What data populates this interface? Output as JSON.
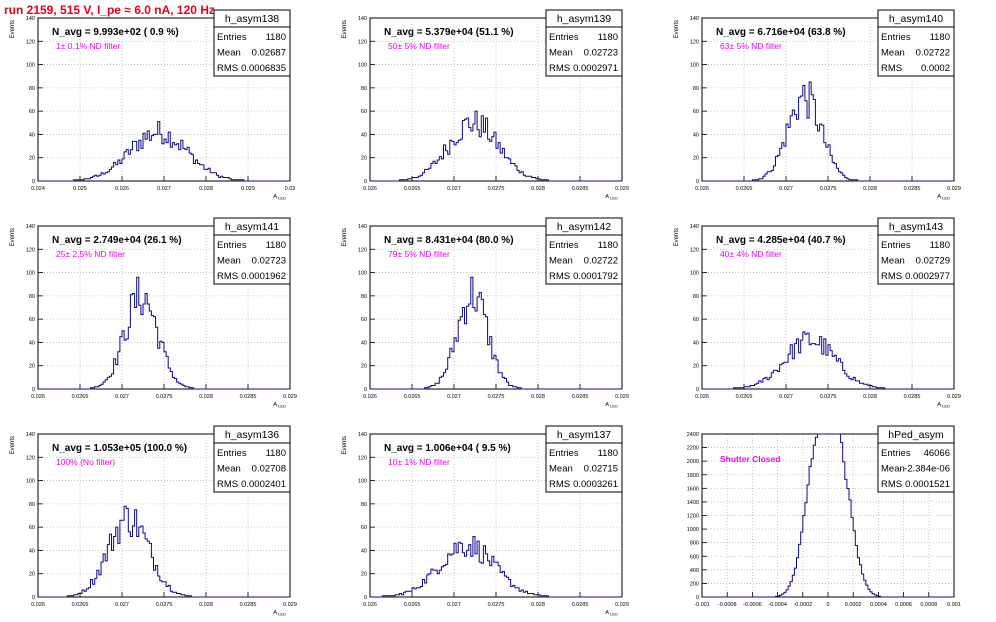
{
  "page_title": "run 2159,   515 V, I_pe ≈ 6.0 nA, 120 Hz",
  "chart_data": [
    {
      "type": "histogram",
      "name": "h_asym138",
      "navg": "N_avg = 9.993e+02 ( 0.9 %)",
      "note": "1± 0.1% ND filter",
      "stats": [
        [
          "Entries",
          "1180"
        ],
        [
          "Mean",
          "0.02687"
        ],
        [
          "RMS",
          "0.0006835"
        ]
      ],
      "xlim": [
        0.024,
        0.03
      ],
      "ylim": [
        0,
        140
      ],
      "xticks": [
        "0.024",
        "0.025",
        "0.026",
        "0.027",
        "0.028",
        "0.029",
        "0.03"
      ],
      "yticks": [
        "0",
        "20",
        "40",
        "60",
        "80",
        "100",
        "120",
        "140"
      ],
      "ylabel": "Events",
      "xlabel": "A_LED",
      "gauss": {
        "mu": 0.02687,
        "sigma": 0.0006835,
        "peak": 42,
        "n": 1180
      }
    },
    {
      "type": "histogram",
      "name": "h_asym139",
      "navg": "N_avg = 5.379e+04 (51.1 %)",
      "note": "50± 5% ND filter",
      "stats": [
        [
          "Entries",
          "1180"
        ],
        [
          "Mean",
          "0.02723"
        ],
        [
          "RMS",
          "0.0002971"
        ]
      ],
      "xlim": [
        0.026,
        0.029
      ],
      "ylim": [
        0,
        140
      ],
      "xticks": [
        "0.026",
        "0.0265",
        "0.027",
        "0.0275",
        "0.028",
        "0.0285",
        "0.029"
      ],
      "yticks": [
        "0",
        "20",
        "40",
        "60",
        "80",
        "100",
        "120",
        "140"
      ],
      "ylabel": "Events",
      "xlabel": "A_LED",
      "gauss": {
        "mu": 0.02723,
        "sigma": 0.0002971,
        "peak": 50,
        "n": 1180
      }
    },
    {
      "type": "histogram",
      "name": "h_asym140",
      "navg": "N_avg = 6.716e+04 (63.8 %)",
      "note": "63± 5% ND filter",
      "stats": [
        [
          "Entries",
          "1180"
        ],
        [
          "Mean",
          "0.02722"
        ],
        [
          "RMS",
          "0.0002"
        ]
      ],
      "xlim": [
        0.026,
        0.029
      ],
      "ylim": [
        0,
        140
      ],
      "xticks": [
        "0.026",
        "0.0265",
        "0.027",
        "0.0275",
        "0.028",
        "0.0285",
        "0.029"
      ],
      "yticks": [
        "0",
        "20",
        "40",
        "60",
        "80",
        "100",
        "120",
        "140"
      ],
      "ylabel": "Events",
      "xlabel": "A_LED",
      "gauss": {
        "mu": 0.02722,
        "sigma": 0.0002,
        "peak": 72,
        "n": 1180
      }
    },
    {
      "type": "histogram",
      "name": "h_asym141",
      "navg": "N_avg = 2.749e+04 (26.1 %)",
      "note": "25± 2.5% ND filter",
      "stats": [
        [
          "Entries",
          "1180"
        ],
        [
          "Mean",
          "0.02723"
        ],
        [
          "RMS",
          "0.0001962"
        ]
      ],
      "xlim": [
        0.026,
        0.029
      ],
      "ylim": [
        0,
        140
      ],
      "xticks": [
        "0.026",
        "0.0265",
        "0.027",
        "0.0275",
        "0.028",
        "0.0285",
        "0.029"
      ],
      "yticks": [
        "0",
        "20",
        "40",
        "60",
        "80",
        "100",
        "120",
        "140"
      ],
      "ylabel": "Events",
      "xlabel": "A_LED",
      "gauss": {
        "mu": 0.02723,
        "sigma": 0.0001962,
        "peak": 80,
        "n": 1180
      }
    },
    {
      "type": "histogram",
      "name": "h_asym142",
      "navg": "N_avg = 8.431e+04 (80.0 %)",
      "note": "79± 5% ND filter",
      "stats": [
        [
          "Entries",
          "1180"
        ],
        [
          "Mean",
          "0.02722"
        ],
        [
          "RMS",
          "0.0001792"
        ]
      ],
      "xlim": [
        0.026,
        0.029
      ],
      "ylim": [
        0,
        140
      ],
      "xticks": [
        "0.026",
        "0.0265",
        "0.027",
        "0.0275",
        "0.028",
        "0.0285",
        "0.029"
      ],
      "yticks": [
        "0",
        "20",
        "40",
        "60",
        "80",
        "100",
        "120",
        "140"
      ],
      "ylabel": "Events",
      "xlabel": "A_LED",
      "gauss": {
        "mu": 0.02722,
        "sigma": 0.0001792,
        "peak": 82,
        "n": 1180
      }
    },
    {
      "type": "histogram",
      "name": "h_asym143",
      "navg": "N_avg = 4.285e+04 (40.7 %)",
      "note": "40± 4% ND filter",
      "stats": [
        [
          "Entries",
          "1180"
        ],
        [
          "Mean",
          "0.02729"
        ],
        [
          "RMS",
          "0.0002977"
        ]
      ],
      "xlim": [
        0.026,
        0.029
      ],
      "ylim": [
        0,
        140
      ],
      "xticks": [
        "0.026",
        "0.0265",
        "0.027",
        "0.0275",
        "0.028",
        "0.0285",
        "0.029"
      ],
      "yticks": [
        "0",
        "20",
        "40",
        "60",
        "80",
        "100",
        "120",
        "140"
      ],
      "ylabel": "Events",
      "xlabel": "A_LED",
      "gauss": {
        "mu": 0.02729,
        "sigma": 0.0002977,
        "peak": 42,
        "n": 1180
      }
    },
    {
      "type": "histogram",
      "name": "h_asym136",
      "navg": "N_avg = 1.053e+05 (100.0 %)",
      "note": "100% (No filter)",
      "stats": [
        [
          "Entries",
          "1180"
        ],
        [
          "Mean",
          "0.02708"
        ],
        [
          "RMS",
          "0.0002401"
        ]
      ],
      "xlim": [
        0.026,
        0.029
      ],
      "ylim": [
        0,
        140
      ],
      "xticks": [
        "0.026",
        "0.0265",
        "0.027",
        "0.0275",
        "0.028",
        "0.0285",
        "0.029"
      ],
      "yticks": [
        "0",
        "20",
        "40",
        "60",
        "80",
        "100",
        "120",
        "140"
      ],
      "ylabel": "Events",
      "xlabel": "A_LED",
      "gauss": {
        "mu": 0.02708,
        "sigma": 0.0002401,
        "peak": 68,
        "n": 1180
      }
    },
    {
      "type": "histogram",
      "name": "h_asym137",
      "navg": "N_avg = 1.006e+04 ( 9.5 %)",
      "note": "10± 1% ND filter",
      "stats": [
        [
          "Entries",
          "1180"
        ],
        [
          "Mean",
          "0.02715"
        ],
        [
          "RMS",
          "0.0003261"
        ]
      ],
      "xlim": [
        0.026,
        0.029
      ],
      "ylim": [
        0,
        140
      ],
      "xticks": [
        "0.026",
        "0.0265",
        "0.027",
        "0.0275",
        "0.028",
        "0.0285",
        "0.029"
      ],
      "yticks": [
        "0",
        "20",
        "40",
        "60",
        "80",
        "100",
        "120",
        "140"
      ],
      "ylabel": "Events",
      "xlabel": "A_LED",
      "gauss": {
        "mu": 0.02715,
        "sigma": 0.0003261,
        "peak": 45,
        "n": 1180
      }
    },
    {
      "type": "histogram",
      "name": "hPed_asym",
      "navg": "",
      "note": "Shutter Closed",
      "stats": [
        [
          "Entries",
          "46066"
        ],
        [
          "Mean",
          "-2.384e-06"
        ],
        [
          "RMS",
          "0.0001521"
        ]
      ],
      "xlim": [
        -0.001,
        0.001
      ],
      "ylim": [
        0,
        2400
      ],
      "xticks": [
        "-0.001",
        "-0.0008",
        "-0.0006",
        "-0.0004",
        "-0.0002",
        "0",
        "0.0002",
        "0.0004",
        "0.0006",
        "0.0008",
        "0.001"
      ],
      "yticks": [
        "0",
        "200",
        "400",
        "600",
        "800",
        "1000",
        "1200",
        "1400",
        "1600",
        "1800",
        "2000",
        "2200",
        "2400"
      ],
      "ylabel": "",
      "xlabel": "",
      "bimodal": {
        "mu1": -8e-05,
        "mu2": 9e-05,
        "sigma": 0.0001,
        "peak": 2150,
        "n": 46066
      }
    }
  ],
  "colors": {
    "title": "#e8001c",
    "note": "#ee00ee",
    "hist": "#0a0a8c",
    "axis": "#000000",
    "grid": "#bbbbbb"
  }
}
